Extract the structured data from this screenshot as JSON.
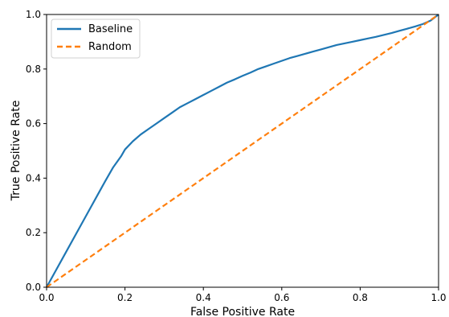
{
  "chart_data": {
    "type": "line",
    "title": "",
    "xlabel": "False Positive Rate",
    "ylabel": "True Positive Rate",
    "xlim": [
      0.0,
      1.0
    ],
    "ylim": [
      0.0,
      1.0
    ],
    "xticks": [
      "0.0",
      "0.2",
      "0.4",
      "0.6",
      "0.8",
      "1.0"
    ],
    "yticks": [
      "0.0",
      "0.2",
      "0.4",
      "0.6",
      "0.8",
      "1.0"
    ],
    "grid": false,
    "legend_position": "upper-left",
    "series": [
      {
        "name": "Baseline",
        "style": "solid",
        "color": "#1f77b4",
        "x": [
          0.0,
          0.05,
          0.1,
          0.15,
          0.17,
          0.19,
          0.2,
          0.22,
          0.24,
          0.26,
          0.28,
          0.3,
          0.32,
          0.34,
          0.36,
          0.38,
          0.4,
          0.42,
          0.44,
          0.46,
          0.48,
          0.5,
          0.52,
          0.54,
          0.56,
          0.58,
          0.6,
          0.62,
          0.64,
          0.66,
          0.68,
          0.7,
          0.72,
          0.74,
          0.76,
          0.78,
          0.8,
          0.82,
          0.84,
          0.86,
          0.88,
          0.9,
          0.92,
          0.94,
          0.96,
          0.98,
          1.0
        ],
        "y": [
          0.0,
          0.13,
          0.26,
          0.39,
          0.44,
          0.48,
          0.505,
          0.535,
          0.56,
          0.58,
          0.6,
          0.62,
          0.64,
          0.66,
          0.675,
          0.69,
          0.705,
          0.72,
          0.735,
          0.75,
          0.762,
          0.775,
          0.787,
          0.8,
          0.81,
          0.82,
          0.83,
          0.84,
          0.848,
          0.856,
          0.864,
          0.872,
          0.88,
          0.888,
          0.894,
          0.9,
          0.906,
          0.912,
          0.918,
          0.925,
          0.932,
          0.94,
          0.948,
          0.956,
          0.965,
          0.978,
          1.0
        ]
      },
      {
        "name": "Random",
        "style": "dashed",
        "color": "#ff7f0e",
        "x": [
          0.0,
          1.0
        ],
        "y": [
          0.0,
          1.0
        ]
      }
    ]
  }
}
